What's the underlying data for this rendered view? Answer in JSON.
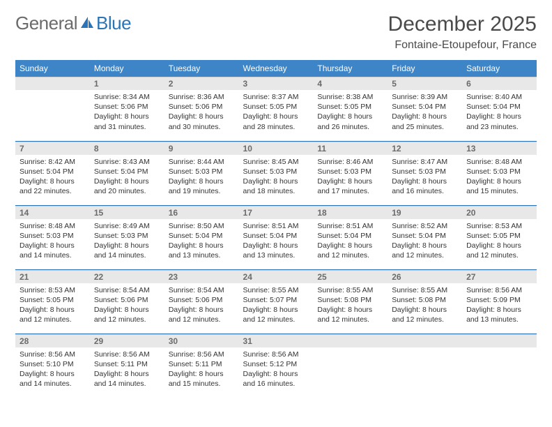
{
  "logo": {
    "text_gray": "General",
    "text_blue": "Blue"
  },
  "header": {
    "month_title": "December 2025",
    "location": "Fontaine-Etoupefour, France"
  },
  "weekdays": [
    "Sunday",
    "Monday",
    "Tuesday",
    "Wednesday",
    "Thursday",
    "Friday",
    "Saturday"
  ],
  "colors": {
    "header_bg": "#3d85c6",
    "daynum_bg": "#e8e8e8",
    "row_divider": "#2b74b8"
  },
  "weeks": [
    [
      null,
      {
        "n": "1",
        "sunrise": "Sunrise: 8:34 AM",
        "sunset": "Sunset: 5:06 PM",
        "daylight": "Daylight: 8 hours and 31 minutes."
      },
      {
        "n": "2",
        "sunrise": "Sunrise: 8:36 AM",
        "sunset": "Sunset: 5:06 PM",
        "daylight": "Daylight: 8 hours and 30 minutes."
      },
      {
        "n": "3",
        "sunrise": "Sunrise: 8:37 AM",
        "sunset": "Sunset: 5:05 PM",
        "daylight": "Daylight: 8 hours and 28 minutes."
      },
      {
        "n": "4",
        "sunrise": "Sunrise: 8:38 AM",
        "sunset": "Sunset: 5:05 PM",
        "daylight": "Daylight: 8 hours and 26 minutes."
      },
      {
        "n": "5",
        "sunrise": "Sunrise: 8:39 AM",
        "sunset": "Sunset: 5:04 PM",
        "daylight": "Daylight: 8 hours and 25 minutes."
      },
      {
        "n": "6",
        "sunrise": "Sunrise: 8:40 AM",
        "sunset": "Sunset: 5:04 PM",
        "daylight": "Daylight: 8 hours and 23 minutes."
      }
    ],
    [
      {
        "n": "7",
        "sunrise": "Sunrise: 8:42 AM",
        "sunset": "Sunset: 5:04 PM",
        "daylight": "Daylight: 8 hours and 22 minutes."
      },
      {
        "n": "8",
        "sunrise": "Sunrise: 8:43 AM",
        "sunset": "Sunset: 5:04 PM",
        "daylight": "Daylight: 8 hours and 20 minutes."
      },
      {
        "n": "9",
        "sunrise": "Sunrise: 8:44 AM",
        "sunset": "Sunset: 5:03 PM",
        "daylight": "Daylight: 8 hours and 19 minutes."
      },
      {
        "n": "10",
        "sunrise": "Sunrise: 8:45 AM",
        "sunset": "Sunset: 5:03 PM",
        "daylight": "Daylight: 8 hours and 18 minutes."
      },
      {
        "n": "11",
        "sunrise": "Sunrise: 8:46 AM",
        "sunset": "Sunset: 5:03 PM",
        "daylight": "Daylight: 8 hours and 17 minutes."
      },
      {
        "n": "12",
        "sunrise": "Sunrise: 8:47 AM",
        "sunset": "Sunset: 5:03 PM",
        "daylight": "Daylight: 8 hours and 16 minutes."
      },
      {
        "n": "13",
        "sunrise": "Sunrise: 8:48 AM",
        "sunset": "Sunset: 5:03 PM",
        "daylight": "Daylight: 8 hours and 15 minutes."
      }
    ],
    [
      {
        "n": "14",
        "sunrise": "Sunrise: 8:48 AM",
        "sunset": "Sunset: 5:03 PM",
        "daylight": "Daylight: 8 hours and 14 minutes."
      },
      {
        "n": "15",
        "sunrise": "Sunrise: 8:49 AM",
        "sunset": "Sunset: 5:03 PM",
        "daylight": "Daylight: 8 hours and 14 minutes."
      },
      {
        "n": "16",
        "sunrise": "Sunrise: 8:50 AM",
        "sunset": "Sunset: 5:04 PM",
        "daylight": "Daylight: 8 hours and 13 minutes."
      },
      {
        "n": "17",
        "sunrise": "Sunrise: 8:51 AM",
        "sunset": "Sunset: 5:04 PM",
        "daylight": "Daylight: 8 hours and 13 minutes."
      },
      {
        "n": "18",
        "sunrise": "Sunrise: 8:51 AM",
        "sunset": "Sunset: 5:04 PM",
        "daylight": "Daylight: 8 hours and 12 minutes."
      },
      {
        "n": "19",
        "sunrise": "Sunrise: 8:52 AM",
        "sunset": "Sunset: 5:04 PM",
        "daylight": "Daylight: 8 hours and 12 minutes."
      },
      {
        "n": "20",
        "sunrise": "Sunrise: 8:53 AM",
        "sunset": "Sunset: 5:05 PM",
        "daylight": "Daylight: 8 hours and 12 minutes."
      }
    ],
    [
      {
        "n": "21",
        "sunrise": "Sunrise: 8:53 AM",
        "sunset": "Sunset: 5:05 PM",
        "daylight": "Daylight: 8 hours and 12 minutes."
      },
      {
        "n": "22",
        "sunrise": "Sunrise: 8:54 AM",
        "sunset": "Sunset: 5:06 PM",
        "daylight": "Daylight: 8 hours and 12 minutes."
      },
      {
        "n": "23",
        "sunrise": "Sunrise: 8:54 AM",
        "sunset": "Sunset: 5:06 PM",
        "daylight": "Daylight: 8 hours and 12 minutes."
      },
      {
        "n": "24",
        "sunrise": "Sunrise: 8:55 AM",
        "sunset": "Sunset: 5:07 PM",
        "daylight": "Daylight: 8 hours and 12 minutes."
      },
      {
        "n": "25",
        "sunrise": "Sunrise: 8:55 AM",
        "sunset": "Sunset: 5:08 PM",
        "daylight": "Daylight: 8 hours and 12 minutes."
      },
      {
        "n": "26",
        "sunrise": "Sunrise: 8:55 AM",
        "sunset": "Sunset: 5:08 PM",
        "daylight": "Daylight: 8 hours and 12 minutes."
      },
      {
        "n": "27",
        "sunrise": "Sunrise: 8:56 AM",
        "sunset": "Sunset: 5:09 PM",
        "daylight": "Daylight: 8 hours and 13 minutes."
      }
    ],
    [
      {
        "n": "28",
        "sunrise": "Sunrise: 8:56 AM",
        "sunset": "Sunset: 5:10 PM",
        "daylight": "Daylight: 8 hours and 14 minutes."
      },
      {
        "n": "29",
        "sunrise": "Sunrise: 8:56 AM",
        "sunset": "Sunset: 5:11 PM",
        "daylight": "Daylight: 8 hours and 14 minutes."
      },
      {
        "n": "30",
        "sunrise": "Sunrise: 8:56 AM",
        "sunset": "Sunset: 5:11 PM",
        "daylight": "Daylight: 8 hours and 15 minutes."
      },
      {
        "n": "31",
        "sunrise": "Sunrise: 8:56 AM",
        "sunset": "Sunset: 5:12 PM",
        "daylight": "Daylight: 8 hours and 16 minutes."
      },
      null,
      null,
      null
    ]
  ]
}
